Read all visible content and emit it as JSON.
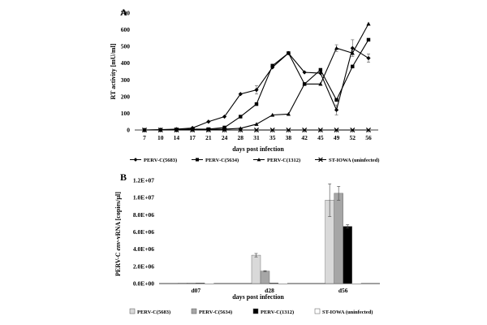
{
  "chart_data": [
    {
      "panel": "A",
      "type": "line",
      "title": "",
      "xlabel": "days post infection",
      "ylabel": "RT activity [mU/ml]",
      "categories": [
        "7",
        "10",
        "14",
        "17",
        "21",
        "24",
        "28",
        "31",
        "35",
        "38",
        "42",
        "45",
        "49",
        "52",
        "56"
      ],
      "yticks": [
        "0",
        "100",
        "200",
        "300",
        "400",
        "500",
        "600",
        "700"
      ],
      "ylim": [
        0,
        700
      ],
      "grid": false,
      "legend_position": "bottom",
      "series": [
        {
          "name": "PERV-C(5683)",
          "marker": "diamond",
          "values": [
            0,
            2,
            5,
            12,
            50,
            80,
            215,
            240,
            375,
            460,
            345,
            340,
            120,
            490,
            430
          ],
          "errors": [
            0,
            0,
            0,
            0,
            0,
            0,
            0,
            25,
            0,
            0,
            0,
            0,
            30,
            50,
            25
          ]
        },
        {
          "name": "PERV-C(5634)",
          "marker": "square",
          "values": [
            0,
            1,
            3,
            5,
            5,
            15,
            80,
            155,
            385,
            460,
            275,
            360,
            180,
            380,
            540
          ],
          "errors": [
            0,
            0,
            0,
            0,
            0,
            0,
            0,
            0,
            0,
            0,
            0,
            0,
            0,
            0,
            0
          ]
        },
        {
          "name": "PERV-C(1312)",
          "marker": "triangle",
          "values": [
            0,
            0,
            0,
            2,
            3,
            5,
            10,
            35,
            90,
            95,
            275,
            275,
            490,
            460,
            635
          ],
          "errors": [
            0,
            0,
            0,
            0,
            0,
            0,
            0,
            0,
            0,
            0,
            0,
            0,
            20,
            0,
            0
          ]
        },
        {
          "name": "ST-IOWA (uninfected)",
          "marker": "x",
          "values": [
            0,
            0,
            0,
            0,
            0,
            0,
            0,
            0,
            0,
            0,
            0,
            0,
            0,
            0,
            0
          ],
          "errors": [
            0,
            0,
            0,
            0,
            0,
            0,
            0,
            0,
            0,
            0,
            0,
            0,
            0,
            0,
            0
          ]
        }
      ]
    },
    {
      "panel": "B",
      "type": "bar",
      "title": "",
      "xlabel": "days post infection",
      "ylabel_prefix": "PERV-C ",
      "ylabel_italic": "env",
      "ylabel_suffix": "-vRNA [copies/µl]",
      "categories": [
        "d07",
        "d28",
        "d56"
      ],
      "yticks": [
        "0.0E+00",
        "2.0E+06",
        "4.0E+06",
        "6.0E+06",
        "8.0E+06",
        "1.0E+07",
        "1.2E+07"
      ],
      "ylim": [
        0,
        12000000
      ],
      "grid": false,
      "legend_position": "bottom",
      "series": [
        {
          "name": "PERV-C(5683)",
          "color": "#d9d9d9",
          "values": [
            20000,
            3300000,
            9700000
          ],
          "errors": [
            0,
            200000,
            1900000
          ]
        },
        {
          "name": "PERV-C(5634)",
          "color": "#a6a6a6",
          "values": [
            10000,
            1450000,
            10500000
          ],
          "errors": [
            0,
            50000,
            800000
          ]
        },
        {
          "name": "PERV-C(1312)",
          "color": "#000000",
          "values": [
            5000,
            50000,
            6650000
          ],
          "errors": [
            0,
            0,
            200000
          ]
        },
        {
          "name": "ST-IOWA (uninfected)",
          "color": "#ffffff",
          "values": [
            0,
            0,
            0
          ],
          "errors": [
            0,
            0,
            0
          ]
        }
      ]
    }
  ]
}
